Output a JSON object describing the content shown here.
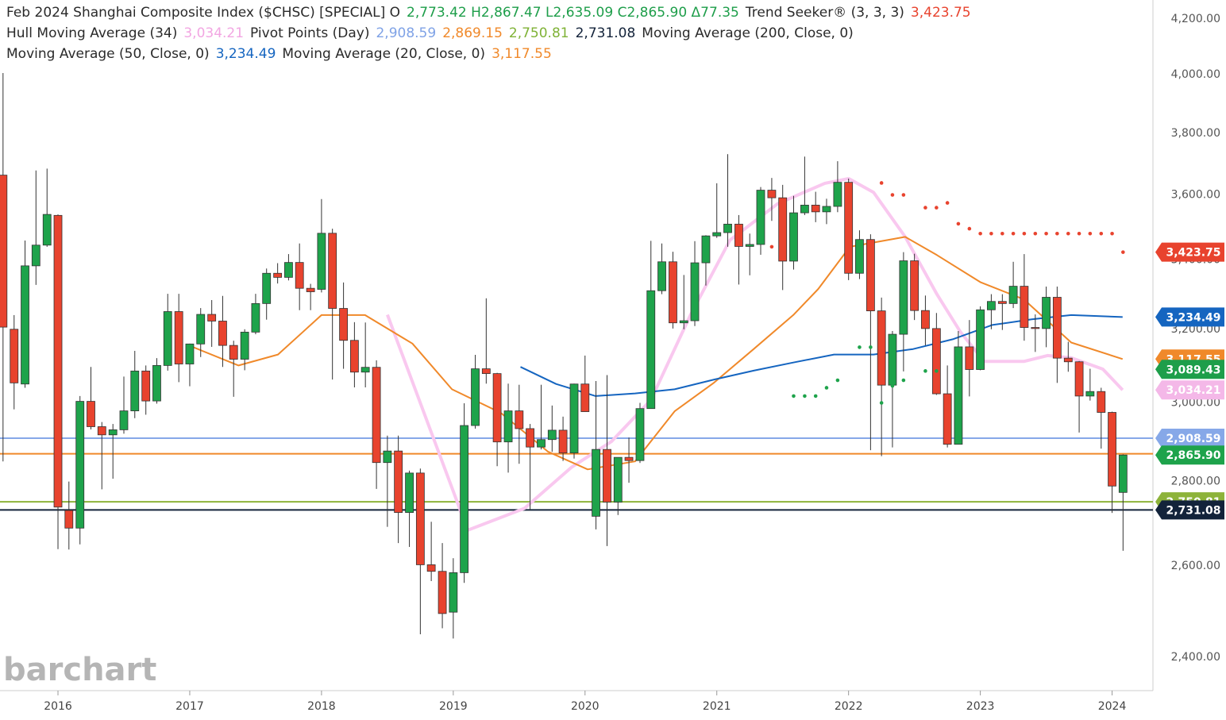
{
  "chart_data": {
    "type": "candlestick",
    "title_lines": [
      [
        {
          "text": "Feb 2024 Shanghai Composite Index ($CHSC) [SPECIAL]  O",
          "color": "#2a2a2a"
        },
        {
          "text": "2,773.42  H2,867.47  L2,635.09  C2,865.90  Δ77.35",
          "color": "#1e9e4a"
        },
        {
          "text": "Trend Seeker®  (3, 3, 3)",
          "color": "#2a2a2a"
        },
        {
          "text": "3,423.75",
          "color": "#e8432e"
        }
      ],
      [
        {
          "text": "Hull Moving Average  (34)",
          "color": "#2a2a2a"
        },
        {
          "text": "3,034.21",
          "color": "#f2a6e2"
        },
        {
          "text": "Pivot Points  (Day)",
          "color": "#2a2a2a"
        },
        {
          "text": "2,908.59",
          "color": "#7fa2e6"
        },
        {
          "text": "2,869.15",
          "color": "#f0892a"
        },
        {
          "text": "2,750.81",
          "color": "#7fb236"
        },
        {
          "text": "2,731.08",
          "color": "#13233a"
        },
        {
          "text": "Moving Average  (200, Close, 0)",
          "color": "#2a2a2a"
        }
      ],
      [
        {
          "text": "Moving Average  (50, Close, 0)",
          "color": "#2a2a2a"
        },
        {
          "text": "3,234.49",
          "color": "#1565c0"
        },
        {
          "text": "Moving Average  (20, Close, 0)",
          "color": "#2a2a2a"
        },
        {
          "text": "3,117.55",
          "color": "#f0892a"
        }
      ]
    ],
    "watermark": "barchart",
    "log_scale": true,
    "grid": false,
    "up_color": "#1ea34b",
    "down_color": "#e8432e",
    "xlim": [
      2015.56,
      2024.31
    ],
    "xticks": [
      2016,
      2017,
      2018,
      2019,
      2020,
      2021,
      2022,
      2023,
      2024
    ],
    "ylim": [
      2331,
      4271
    ],
    "yticks": [
      {
        "value": 2400,
        "label": "2,400.00"
      },
      {
        "value": 2600,
        "label": "2,600.00"
      },
      {
        "value": 2800,
        "label": "2,800.00"
      },
      {
        "value": 3000,
        "label": "3,000.00"
      },
      {
        "value": 3200,
        "label": "3,200.00"
      },
      {
        "value": 3400,
        "label": "3,400.00"
      },
      {
        "value": 3600,
        "label": "3,600.00"
      },
      {
        "value": 3800,
        "label": "3,800.00"
      },
      {
        "value": 4000,
        "label": "4,000.00"
      },
      {
        "value": 4200,
        "label": "4,200.00"
      }
    ],
    "x": [
      2015.583,
      2015.667,
      2015.75,
      2015.833,
      2015.917,
      2016,
      2016.083,
      2016.167,
      2016.25,
      2016.333,
      2016.417,
      2016.5,
      2016.583,
      2016.667,
      2016.75,
      2016.833,
      2016.917,
      2017,
      2017.083,
      2017.167,
      2017.25,
      2017.333,
      2017.417,
      2017.5,
      2017.583,
      2017.667,
      2017.75,
      2017.833,
      2017.917,
      2018,
      2018.083,
      2018.167,
      2018.25,
      2018.333,
      2018.417,
      2018.5,
      2018.583,
      2018.667,
      2018.75,
      2018.833,
      2018.917,
      2019,
      2019.083,
      2019.167,
      2019.25,
      2019.333,
      2019.417,
      2019.5,
      2019.583,
      2019.667,
      2019.75,
      2019.833,
      2019.917,
      2020,
      2020.083,
      2020.167,
      2020.25,
      2020.333,
      2020.417,
      2020.5,
      2020.583,
      2020.667,
      2020.75,
      2020.833,
      2020.917,
      2021,
      2021.083,
      2021.167,
      2021.25,
      2021.333,
      2021.417,
      2021.5,
      2021.583,
      2021.667,
      2021.75,
      2021.833,
      2021.917,
      2022,
      2022.083,
      2022.167,
      2022.25,
      2022.333,
      2022.417,
      2022.5,
      2022.583,
      2022.667,
      2022.75,
      2022.833,
      2022.917,
      2023,
      2023.083,
      2023.167,
      2023.25,
      2023.333,
      2023.417,
      2023.5,
      2023.583,
      2023.667,
      2023.75,
      2023.833,
      2023.917,
      2024,
      2024.083
    ],
    "open": [
      3663,
      3200,
      3050,
      3383,
      3445,
      3536,
      2730,
      2688,
      3004,
      2938,
      2917,
      2930,
      2979,
      3085,
      3005,
      3100,
      3250,
      3104,
      3159,
      3242,
      3223,
      3155,
      3117,
      3192,
      3273,
      3361,
      3349,
      3393,
      3317,
      3314,
      3481,
      3259,
      3169,
      3082,
      3095,
      2847,
      2876,
      2725,
      2821,
      2603,
      2588,
      2497,
      2585,
      2941,
      3091,
      3078,
      2899,
      2979,
      2933,
      2886,
      2905,
      2929,
      2871,
      3050,
      2716,
      2880,
      2750,
      2860,
      2852,
      2985,
      3310,
      3395,
      3218,
      3224,
      3392,
      3473,
      3483,
      3509,
      3441,
      3447,
      3615,
      3591,
      3397,
      3544,
      3568,
      3547,
      3564,
      3640,
      3361,
      3462,
      3252,
      3047,
      3186,
      3398,
      3253,
      3202,
      3024,
      2893,
      3151,
      3089,
      3255,
      3279,
      3273,
      3323,
      3205,
      3202,
      3291,
      3120,
      3110,
      3018,
      3030,
      2975,
      2773.42
    ],
    "high": [
      4006,
      3240,
      3459,
      3678,
      3684,
      3539,
      2800,
      3018,
      3096,
      2950,
      2945,
      3070,
      3140,
      3100,
      3120,
      3301,
      3301,
      3160,
      3260,
      3283,
      3295,
      3168,
      3200,
      3301,
      3375,
      3391,
      3418,
      3450,
      3330,
      3587,
      3495,
      3334,
      3220,
      3219,
      3114,
      2915,
      2915,
      2827,
      2832,
      2703,
      2653,
      2618,
      2999,
      3129,
      3288,
      3080,
      3051,
      3048,
      2945,
      3048,
      2993,
      2964,
      3051,
      3127,
      3058,
      3074,
      2860,
      2910,
      3000,
      3458,
      3450,
      3425,
      3356,
      3457,
      3475,
      3637,
      3731,
      3537,
      3480,
      3625,
      3654,
      3632,
      3597,
      3723,
      3610,
      3588,
      3708,
      3652,
      3490,
      3478,
      3290,
      3195,
      3424,
      3419,
      3296,
      3246,
      3100,
      3195,
      3226,
      3265,
      3300,
      3300,
      3395,
      3418,
      3242,
      3322,
      3322,
      3165,
      3112,
      3091,
      3040,
      2977,
      2867.47
    ],
    "low": [
      2850,
      2983,
      3040,
      3327,
      3440,
      2639,
      2638,
      2650,
      2931,
      2781,
      2807,
      2920,
      2960,
      2969,
      2998,
      3086,
      3055,
      3044,
      3123,
      3151,
      3096,
      3016,
      3087,
      3186,
      3227,
      3331,
      3340,
      3254,
      3254,
      3305,
      3062,
      3091,
      3041,
      3041,
      2782,
      2691,
      2653,
      2644,
      2449,
      2566,
      2462,
      2440,
      2562,
      2933,
      3051,
      2838,
      2822,
      2844,
      2733,
      2880,
      2874,
      2851,
      2857,
      2977,
      2685,
      2646,
      2719,
      2797,
      2846,
      2985,
      3300,
      3202,
      3200,
      3209,
      3325,
      3467,
      3440,
      3328,
      3355,
      3416,
      3519,
      3312,
      3372,
      3537,
      3515,
      3509,
      3546,
      3341,
      3344,
      2878,
      2863,
      2885,
      3084,
      3226,
      3155,
      3021,
      2885,
      2896,
      3017,
      3087,
      3200,
      3198,
      3260,
      3168,
      3137,
      3150,
      3053,
      3083,
      2923,
      3006,
      2882,
      2724,
      2635.09
    ],
    "close": [
      3206,
      3053,
      3383,
      3445,
      3539,
      2738,
      2688,
      3004,
      2938,
      2917,
      2930,
      2979,
      3085,
      3005,
      3100,
      3250,
      3104,
      3159,
      3242,
      3223,
      3155,
      3117,
      3192,
      3273,
      3361,
      3349,
      3393,
      3317,
      3307,
      3481,
      3259,
      3169,
      3082,
      3095,
      2847,
      2876,
      2725,
      2821,
      2603,
      2588,
      2494,
      2585,
      2941,
      3091,
      3078,
      2899,
      2979,
      2933,
      2886,
      2905,
      2929,
      2871,
      3050,
      2977,
      2880,
      2750,
      2860,
      2852,
      2985,
      3310,
      3395,
      3218,
      3224,
      3392,
      3473,
      3483,
      3509,
      3441,
      3447,
      3615,
      3591,
      3397,
      3544,
      3568,
      3547,
      3564,
      3640,
      3361,
      3462,
      3252,
      3047,
      3186,
      3398,
      3253,
      3202,
      3024,
      2893,
      3151,
      3089,
      3255,
      3279,
      3273,
      3323,
      3205,
      3202,
      3291,
      3120,
      3110,
      3018,
      3030,
      2975,
      2789,
      2865.9
    ],
    "overlays": [
      {
        "color": "#f9c8ef",
        "width": 4,
        "x": [
          2018.5,
          2019.11,
          2019.54,
          2019.9,
          2020.2,
          2020.5,
          2020.8,
          2021.1,
          2021.46,
          2021.82,
          2022.0,
          2022.19,
          2022.43,
          2022.67,
          2022.85,
          2023.03,
          2023.33,
          2023.51,
          2023.69,
          2023.93,
          2024.08
        ],
        "values": [
          3241,
          2683,
          2735,
          2836,
          2900,
          3008,
          3240,
          3460,
          3572,
          3637,
          3652,
          3608,
          3470,
          3300,
          3192,
          3111,
          3111,
          3127,
          3121,
          3090,
          3034.21
        ]
      },
      {
        "color": "#f0892a",
        "width": 2,
        "x": [
          2017.0,
          2017.37,
          2017.67,
          2018.0,
          2018.33,
          2018.69,
          2018.99,
          2019.36,
          2019.72,
          2020.02,
          2020.38,
          2020.68,
          2020.98,
          2021.28,
          2021.58,
          2021.77,
          2022.01,
          2022.43,
          2022.67,
          2023.0,
          2023.33,
          2023.69,
          2024.08
        ],
        "values": [
          3154,
          3100,
          3130,
          3240,
          3240,
          3160,
          3036,
          2974,
          2874,
          2830,
          2850,
          2978,
          3054,
          3145,
          3240,
          3315,
          3440,
          3470,
          3415,
          3335,
          3285,
          3163,
          3117.55
        ]
      },
      {
        "color": "#1565c0",
        "width": 2,
        "x": [
          2019.51,
          2019.78,
          2020.08,
          2020.38,
          2020.68,
          2020.98,
          2021.28,
          2021.58,
          2021.89,
          2022.19,
          2022.49,
          2022.79,
          2023.09,
          2023.39,
          2023.69,
          2024.08
        ],
        "values": [
          3096,
          3050,
          3018,
          3025,
          3036,
          3062,
          3086,
          3108,
          3130,
          3130,
          3145,
          3172,
          3212,
          3228,
          3240,
          3234.49
        ]
      }
    ],
    "pivot_lines": [
      {
        "value": 2908.59,
        "color": "#86a8e8"
      },
      {
        "value": 2869.15,
        "color": "#f0892a"
      },
      {
        "value": 2750.81,
        "color": "#8db33a"
      },
      {
        "value": 2731.08,
        "color": "#13233a"
      }
    ],
    "trend_seeker": [
      {
        "color": "#1ea34b",
        "x": [
          2021.583,
          2021.667,
          2021.75,
          2021.833,
          2021.917,
          2022.083,
          2022.167,
          2022.25,
          2022.333,
          2022.417,
          2022.583,
          2022.667
        ],
        "values": [
          3018,
          3018,
          3018,
          3040,
          3060,
          3150,
          3150,
          3000,
          3045,
          3060,
          3085,
          3085
        ]
      },
      {
        "color": "#e8432e",
        "x": [
          2021.417,
          2022.25,
          2022.333,
          2022.417,
          2022.583,
          2022.667,
          2022.75,
          2022.833,
          2022.917,
          2023,
          2023.083,
          2023.167,
          2023.25,
          2023.333,
          2023.417,
          2023.5,
          2023.583,
          2023.667,
          2023.75,
          2023.833,
          2023.917,
          2024,
          2024.083
        ],
        "values": [
          3440,
          3638,
          3600,
          3600,
          3560,
          3560,
          3575,
          3510,
          3495,
          3480,
          3480,
          3480,
          3480,
          3480,
          3480,
          3480,
          3480,
          3480,
          3480,
          3480,
          3480,
          3480,
          3423.75
        ]
      }
    ],
    "price_labels": [
      {
        "value": 3423.75,
        "label": "3,423.75",
        "color": "#e8432e"
      },
      {
        "value": 3234.49,
        "label": "3,234.49",
        "color": "#1565c0"
      },
      {
        "value": 3117.55,
        "label": "3,117.55",
        "color": "#f0892a"
      },
      {
        "value": 3089.43,
        "label": "3,089.43",
        "color": "#1e9e4a"
      },
      {
        "value": 3034.21,
        "label": "3,034.21",
        "color": "#f4b8e8"
      },
      {
        "value": 2908.59,
        "label": "2,908.59",
        "color": "#86a8e8"
      },
      {
        "value": 2750.81,
        "label": "2,750.81",
        "color": "#8db33a"
      },
      {
        "value": 2865.9,
        "label": "2,865.90",
        "color": "#1ea34b"
      },
      {
        "value": 2731.08,
        "label": "2,731.08",
        "color": "#13233a"
      }
    ]
  }
}
